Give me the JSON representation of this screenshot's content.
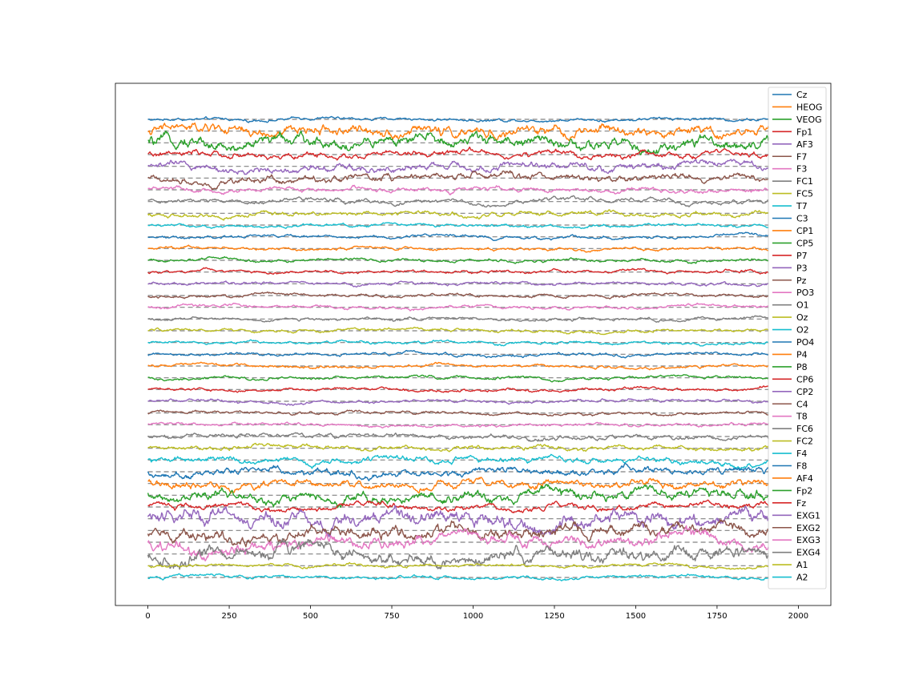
{
  "chart_data": {
    "type": "line",
    "title": "",
    "xlabel": "",
    "ylabel": "",
    "xlim": [
      -100,
      2100
    ],
    "xticks": [
      0,
      250,
      500,
      750,
      1000,
      1250,
      1500,
      1750,
      2000
    ],
    "x_samples": [
      0,
      1910
    ],
    "y_ticks_visible": false,
    "grid": false,
    "legend": "right, inside",
    "baseline_style": "dashed gray line at each channel offset",
    "colors": [
      "#1f77b4",
      "#ff7f0e",
      "#2ca02c",
      "#d62728",
      "#9467bd",
      "#8c564b",
      "#e377c2",
      "#7f7f7f",
      "#bcbd22",
      "#17becf"
    ],
    "series": [
      {
        "name": "Cz"
      },
      {
        "name": "HEOG"
      },
      {
        "name": "VEOG"
      },
      {
        "name": "Fp1"
      },
      {
        "name": "AF3"
      },
      {
        "name": "F7"
      },
      {
        "name": "F3"
      },
      {
        "name": "FC1"
      },
      {
        "name": "FC5"
      },
      {
        "name": "T7"
      },
      {
        "name": "C3"
      },
      {
        "name": "CP1"
      },
      {
        "name": "CP5"
      },
      {
        "name": "P7"
      },
      {
        "name": "P3"
      },
      {
        "name": "Pz"
      },
      {
        "name": "PO3"
      },
      {
        "name": "O1"
      },
      {
        "name": "Oz"
      },
      {
        "name": "O2"
      },
      {
        "name": "PO4"
      },
      {
        "name": "P4"
      },
      {
        "name": "P8"
      },
      {
        "name": "CP6"
      },
      {
        "name": "CP2"
      },
      {
        "name": "C4"
      },
      {
        "name": "T8"
      },
      {
        "name": "FC6"
      },
      {
        "name": "FC2"
      },
      {
        "name": "F4"
      },
      {
        "name": "F8"
      },
      {
        "name": "AF4"
      },
      {
        "name": "Fp2"
      },
      {
        "name": "Fz"
      },
      {
        "name": "EXG1"
      },
      {
        "name": "EXG2"
      },
      {
        "name": "EXG3"
      },
      {
        "name": "EXG4"
      },
      {
        "name": "A1"
      },
      {
        "name": "A2"
      }
    ],
    "signal_amplitude": [
      2,
      7,
      8,
      4,
      5,
      5,
      3,
      3,
      3,
      2,
      2,
      2,
      2,
      2,
      2,
      2,
      2,
      2,
      2,
      2,
      2,
      2,
      2,
      2,
      2,
      2,
      2,
      3,
      3,
      4,
      5,
      5,
      7,
      4,
      10,
      8,
      8,
      9,
      2,
      2
    ]
  }
}
